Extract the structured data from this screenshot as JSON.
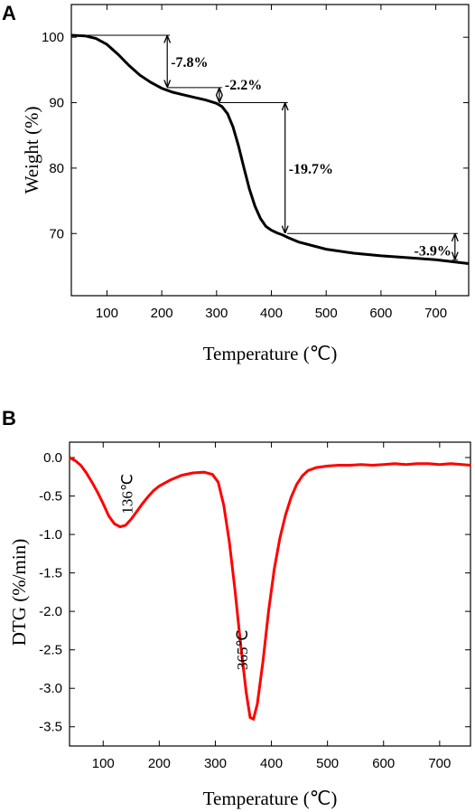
{
  "chart_data": [
    {
      "panel": "A",
      "type": "line",
      "xlabel": "Temperature (℃)",
      "ylabel": "Weight (%)",
      "xlim": [
        35,
        760
      ],
      "ylim": [
        60.5,
        105
      ],
      "xticks": [
        100,
        200,
        300,
        400,
        500,
        600,
        700
      ],
      "yticks": [
        70,
        80,
        90,
        100
      ],
      "color": "#000000",
      "series": [
        {
          "x": [
            35,
            60,
            80,
            100,
            120,
            140,
            160,
            180,
            200,
            220,
            240,
            260,
            280,
            300,
            310,
            320,
            330,
            340,
            350,
            360,
            370,
            380,
            390,
            400,
            410,
            420,
            430,
            450,
            500,
            550,
            600,
            650,
            700,
            760
          ],
          "y": [
            100.3,
            100.2,
            99.8,
            98.9,
            97.4,
            95.7,
            94.2,
            93.1,
            92.2,
            91.6,
            91.2,
            90.8,
            90.4,
            89.9,
            89.4,
            88.3,
            86.3,
            83.4,
            80.0,
            76.8,
            74.2,
            72.3,
            71.1,
            70.5,
            70.1,
            69.8,
            69.4,
            68.7,
            67.6,
            67.0,
            66.6,
            66.3,
            66.0,
            65.4
          ]
        }
      ],
      "annotations": [
        {
          "label": "-7.8%",
          "x": 210,
          "y_top": 100.3,
          "y_bottom": 92.3
        },
        {
          "label": "-2.2%",
          "x": 305,
          "y_top": 92.3,
          "y_bottom": 90.0
        },
        {
          "label": "-19.7%",
          "x": 425,
          "y_top": 90.0,
          "y_bottom": 70.0
        },
        {
          "label": "-3.9%",
          "x": 735,
          "y_top": 70.0,
          "y_bottom": 66.0
        }
      ]
    },
    {
      "panel": "B",
      "type": "line",
      "xlabel": "Temperature (℃)",
      "ylabel": "DTG (%/min)",
      "xlim": [
        40,
        755
      ],
      "ylim": [
        -3.75,
        0.2
      ],
      "xticks": [
        100,
        200,
        300,
        400,
        500,
        600,
        700
      ],
      "yticks": [
        0.0,
        -0.5,
        -1.0,
        -1.5,
        -2.0,
        -2.5,
        -3.0,
        -3.5
      ],
      "ytick_labels": [
        "0.0",
        "-0.5",
        "-1.0",
        "-1.5",
        "-2.0",
        "-2.5",
        "-3.0",
        "-3.5"
      ],
      "color": "#ff0000",
      "series": [
        {
          "x": [
            40,
            50,
            60,
            70,
            80,
            90,
            100,
            110,
            120,
            130,
            140,
            150,
            160,
            170,
            180,
            190,
            200,
            220,
            240,
            260,
            280,
            295,
            305,
            315,
            325,
            335,
            345,
            355,
            362,
            368,
            375,
            385,
            395,
            405,
            415,
            425,
            435,
            445,
            455,
            465,
            480,
            500,
            520,
            540,
            560,
            580,
            600,
            620,
            640,
            660,
            680,
            700,
            720,
            740,
            755
          ],
          "y": [
            0.0,
            -0.04,
            -0.1,
            -0.2,
            -0.32,
            -0.45,
            -0.6,
            -0.76,
            -0.86,
            -0.9,
            -0.88,
            -0.8,
            -0.7,
            -0.6,
            -0.51,
            -0.43,
            -0.37,
            -0.29,
            -0.23,
            -0.2,
            -0.19,
            -0.22,
            -0.32,
            -0.62,
            -1.1,
            -1.72,
            -2.42,
            -3.05,
            -3.38,
            -3.4,
            -3.2,
            -2.65,
            -2.0,
            -1.45,
            -1.05,
            -0.75,
            -0.52,
            -0.35,
            -0.24,
            -0.17,
            -0.13,
            -0.11,
            -0.1,
            -0.1,
            -0.09,
            -0.1,
            -0.09,
            -0.08,
            -0.09,
            -0.08,
            -0.08,
            -0.09,
            -0.08,
            -0.09,
            -0.1
          ]
        }
      ],
      "annotations": [
        {
          "label": "136℃",
          "x": 136,
          "y": -0.9
        },
        {
          "label": "365℃",
          "x": 365,
          "y": -3.4
        }
      ]
    }
  ],
  "panels": {
    "a": {
      "letter": "A"
    },
    "b": {
      "letter": "B"
    }
  }
}
